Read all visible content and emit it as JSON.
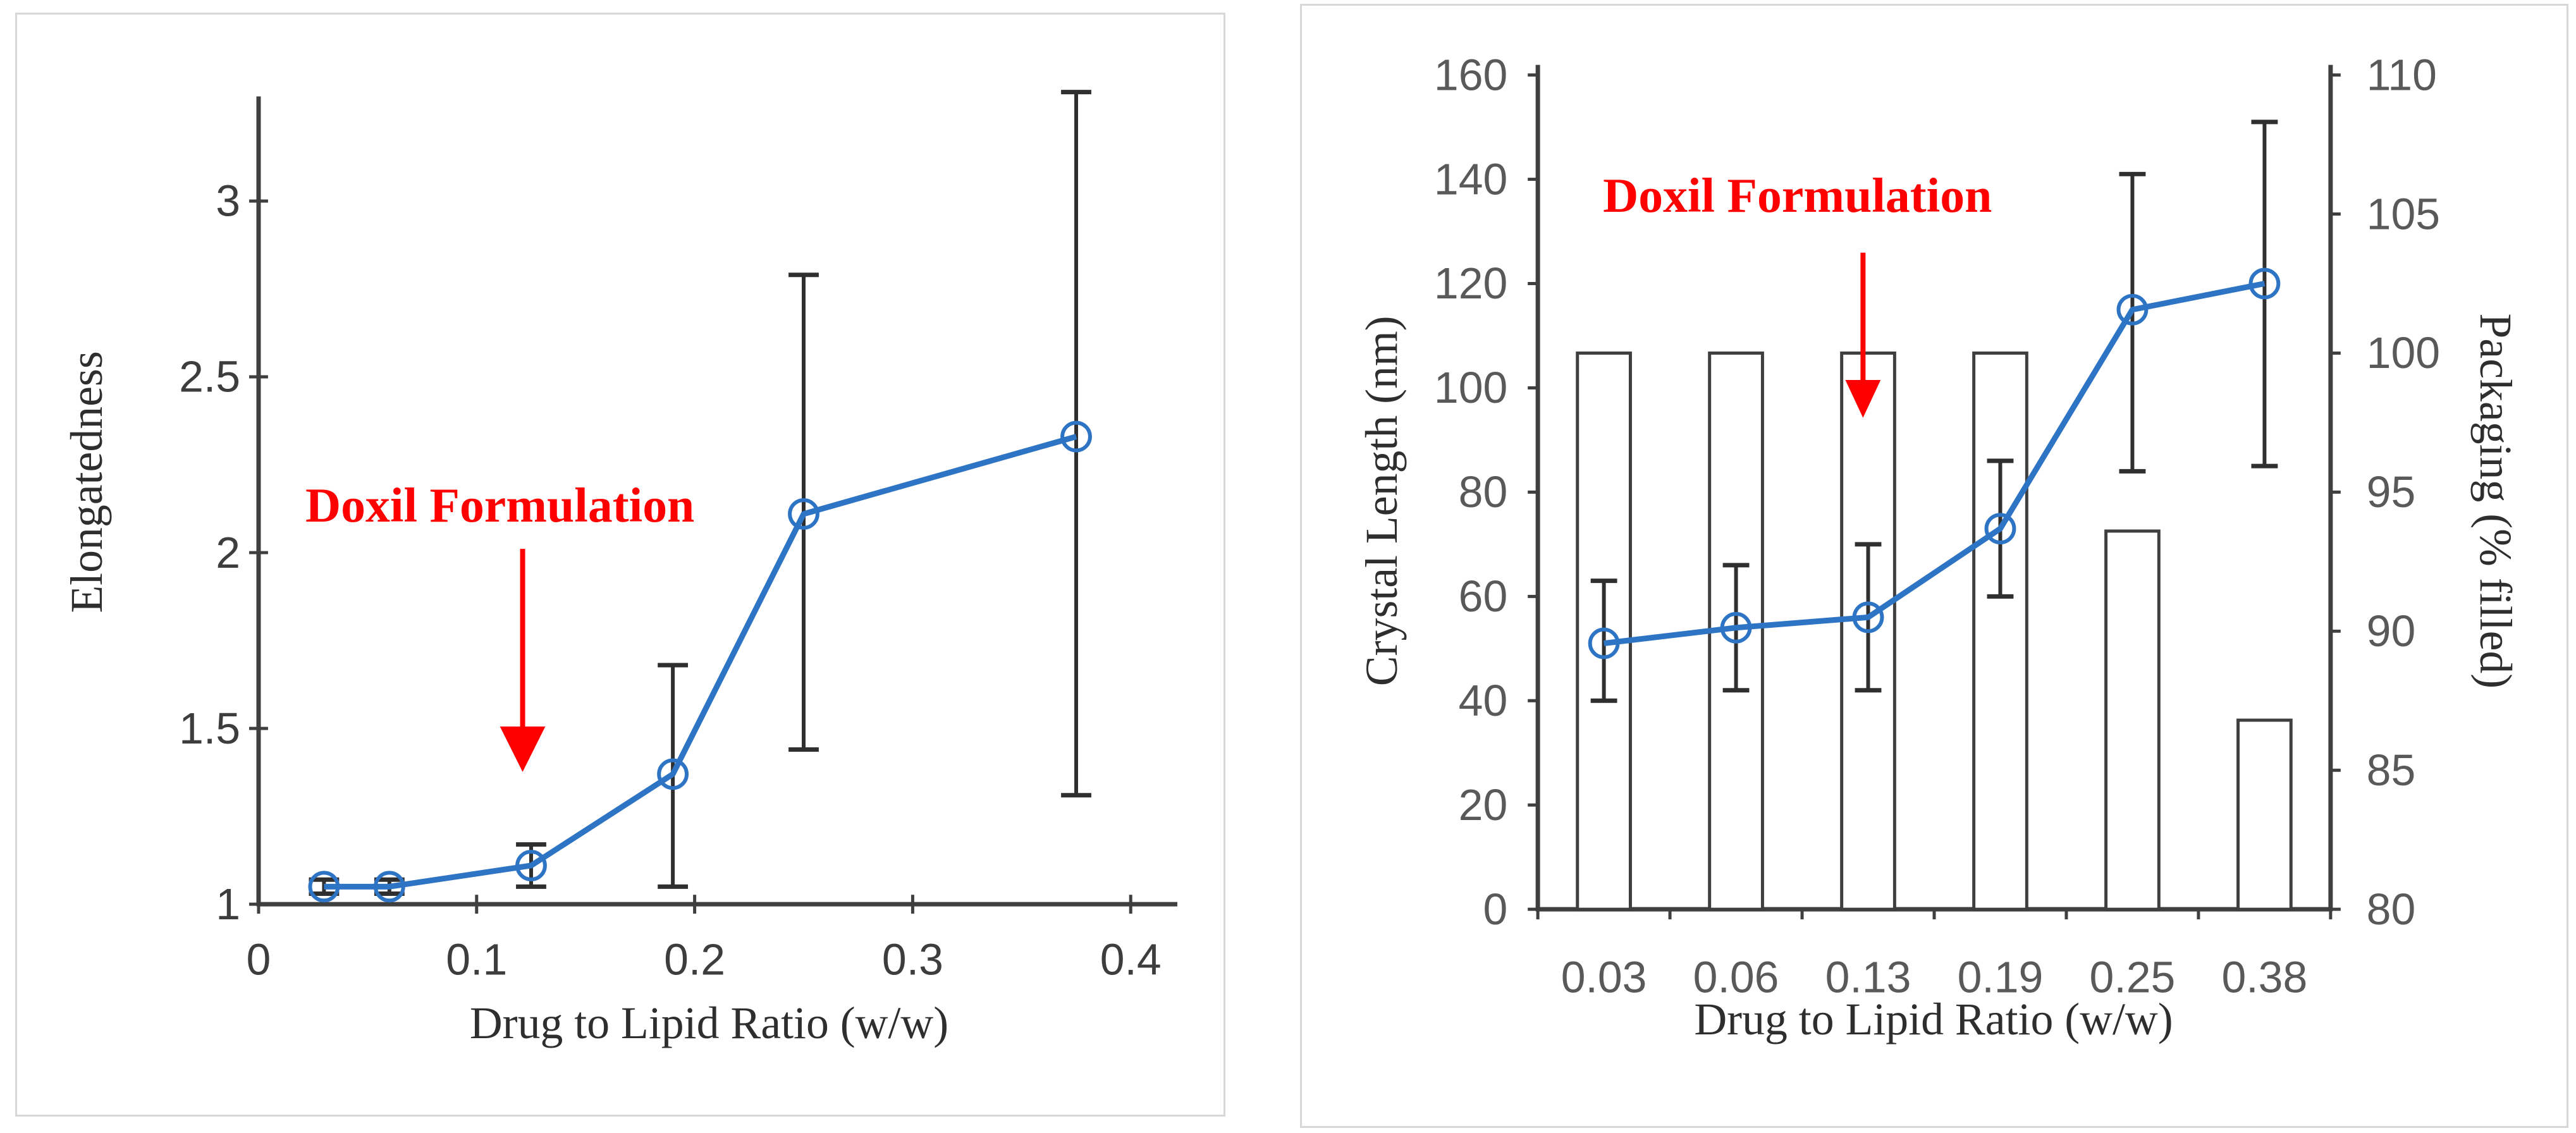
{
  "figure": {
    "background": "#ffffff",
    "panel_border_color": "#d7d7d7",
    "annotation_text": "Doxil Formulation"
  },
  "colors": {
    "axis": "#3f3f3f",
    "tick_label_left_chart": "#3d3d3d",
    "tick_label_right_chart": "#595959",
    "title_text": "#2e2e2e",
    "series_blue": "#2E74C4",
    "error_bar": "#2f2f2f",
    "bar_fill": "#ffffff",
    "bar_stroke": "#3f3f3f",
    "annotation_red": "#FF0000"
  },
  "chart_data": [
    {
      "type": "line",
      "title": "",
      "xlabel": "Drug to Lipid Ratio (w/w)",
      "ylabel": "Elongatedness",
      "x": [
        0.03,
        0.06,
        0.125,
        0.19,
        0.25,
        0.375
      ],
      "y": [
        1.05,
        1.05,
        1.11,
        1.37,
        2.11,
        2.33
      ],
      "y_err_low": [
        1.03,
        1.03,
        1.05,
        1.05,
        1.44,
        1.31
      ],
      "y_err_high": [
        1.07,
        1.07,
        1.17,
        1.68,
        2.79,
        3.31
      ],
      "xlim": [
        0,
        0.42
      ],
      "ylim": [
        1,
        3.3
      ],
      "grid": false,
      "legend": false,
      "x_tick_values": [
        0,
        0.1,
        0.2,
        0.3,
        0.4
      ],
      "x_tick_labels": [
        "0",
        "0.1",
        "0.2",
        "0.3",
        "0.4"
      ],
      "y_tick_values": [
        1,
        1.5,
        2,
        2.5,
        3
      ],
      "y_tick_labels": [
        "1",
        "1.5",
        "2",
        "2.5",
        "3"
      ],
      "annotation": {
        "text": "Doxil Formulation",
        "points_to_x": 0.121,
        "text_pos": [
          790,
          800
        ],
        "arrow_x": 826,
        "arrow_y1": 868,
        "arrow_y2": 1150,
        "head_w": 72,
        "head_h": 72
      },
      "layout": {
        "plot": {
          "x0": 407,
          "y0": 1432,
          "x_scale": 3460,
          "y_scale": 558,
          "y_base": 1,
          "axis_top": 150,
          "axis_right": 1865
        },
        "tick_len": 15,
        "y_tick_label_x": 378,
        "x_tick_label_y": 1520,
        "xlabel_pos": [
          1122,
          1620
        ],
        "ylabel_pos": [
          158,
          762
        ],
        "font_tick": 70,
        "font_title": 72,
        "font_annot": 78,
        "cap_half": 24,
        "marker_r": 22
      }
    },
    {
      "type": "combo",
      "title": "",
      "xlabel": "Drug to Lipid Ratio (w/w)",
      "ylabel_left": "Crystal Length (nm)",
      "ylabel_right": "Packaging (% filled)",
      "categories": [
        "0.03",
        "0.06",
        "0.13",
        "0.19",
        "0.25",
        "0.38"
      ],
      "series": [
        {
          "name": "Packaging (% filled)",
          "type": "bar",
          "axis": "right",
          "values": [
            100,
            100,
            100,
            100,
            93.6,
            86.8
          ]
        },
        {
          "name": "Crystal Length (nm)",
          "type": "line",
          "axis": "left",
          "values": [
            51,
            54,
            56,
            73,
            115,
            120
          ],
          "err_low": [
            40,
            42,
            42,
            60,
            84,
            85
          ],
          "err_high": [
            63,
            66,
            70,
            86,
            141,
            151
          ]
        }
      ],
      "ylim_left": [
        0,
        160
      ],
      "ylim_right": [
        80,
        110
      ],
      "grid": false,
      "legend": false,
      "y_left_tick_values": [
        0,
        20,
        40,
        60,
        80,
        100,
        120,
        140,
        160
      ],
      "y_left_tick_labels": [
        "0",
        "20",
        "40",
        "60",
        "80",
        "100",
        "120",
        "140",
        "160"
      ],
      "y_right_tick_values": [
        80,
        85,
        90,
        95,
        100,
        105,
        110
      ],
      "y_right_tick_labels": [
        "80",
        "85",
        "90",
        "95",
        "100",
        "105",
        "110"
      ],
      "annotation": {
        "text": "Doxil Formulation",
        "points_to_category": "0.13",
        "text_pos": [
          2842,
          308
        ],
        "arrow_x": 2946,
        "arrow_y1": 398,
        "arrow_y2": 600,
        "head_w": 56,
        "head_h": 60
      },
      "layout": {
        "plot": {
          "x0": 2430,
          "x1": 3688,
          "y0": 1440,
          "y_top": 116,
          "axis_top": 100
        },
        "bar_half": 42,
        "tick_len": 16,
        "left_tick_label_x": 2382,
        "right_tick_label_x": 3745,
        "x_tick_label_y": 1548,
        "xlabel_pos": [
          3058,
          1614
        ],
        "ylabel_left_pos": [
          2206,
          792
        ],
        "ylabel_right_pos": [
          3926,
          792
        ],
        "font_tick": 70,
        "font_title": 72,
        "font_annot": 78,
        "cap_half": 21,
        "marker_r": 22
      }
    }
  ]
}
